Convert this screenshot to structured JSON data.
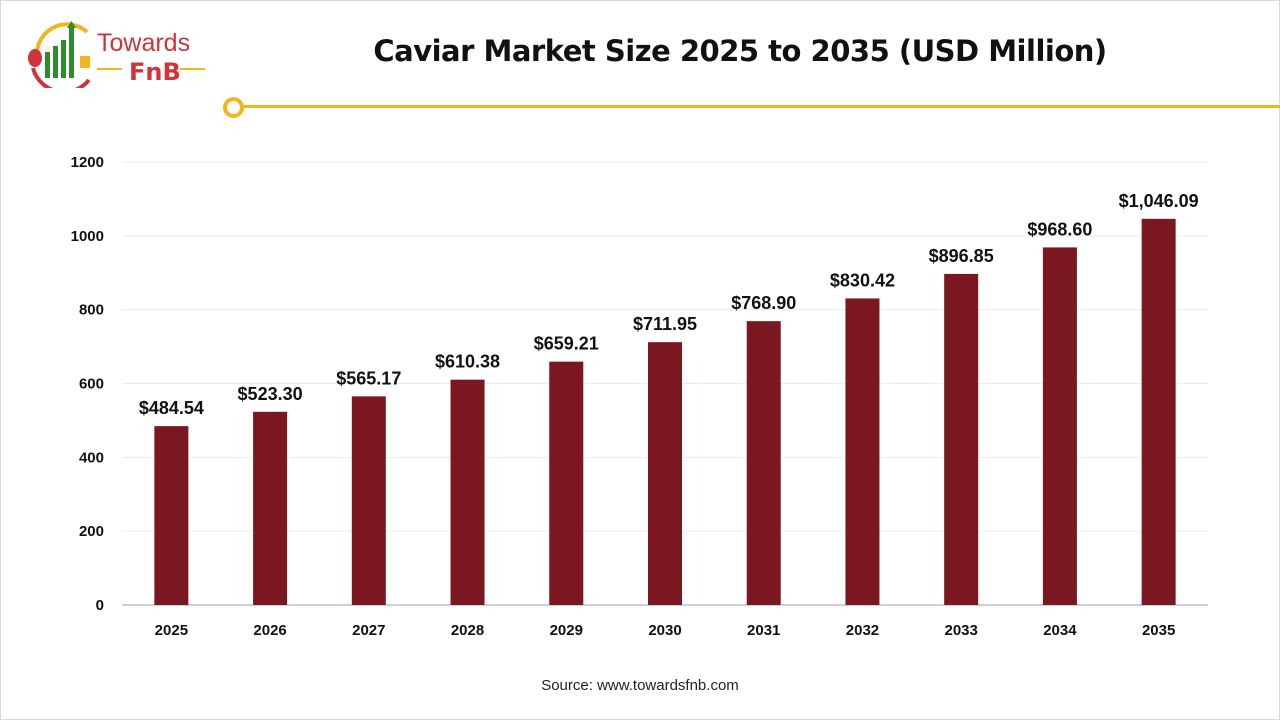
{
  "logo": {
    "text_top": "Towards",
    "text_bottom": "FnB",
    "colors": {
      "red": "#d0343a",
      "green": "#2e8b2e",
      "yellow": "#f2b51d"
    }
  },
  "source": "Source: www.towardsfnb.com",
  "chart_data": {
    "type": "bar",
    "title": "Caviar Market Size 2025 to 2035 (USD Million)",
    "categories": [
      "2025",
      "2026",
      "2027",
      "2028",
      "2029",
      "2030",
      "2031",
      "2032",
      "2033",
      "2034",
      "2035"
    ],
    "values": [
      484.54,
      523.3,
      565.17,
      610.38,
      659.21,
      711.95,
      768.9,
      830.42,
      896.85,
      968.6,
      1046.09
    ],
    "data_labels": [
      "$484.54",
      "$523.30",
      "$565.17",
      "$610.38",
      "$659.21",
      "$711.95",
      "$768.90",
      "$830.42",
      "$896.85",
      "$968.60",
      "$1,046.09"
    ],
    "yticks": [
      "0",
      "200",
      "400",
      "600",
      "800",
      "1000",
      "1200"
    ],
    "ylim": [
      0,
      1200
    ],
    "xlabel": "",
    "ylabel": "",
    "grid": true,
    "bar_color": "#7b1720"
  }
}
